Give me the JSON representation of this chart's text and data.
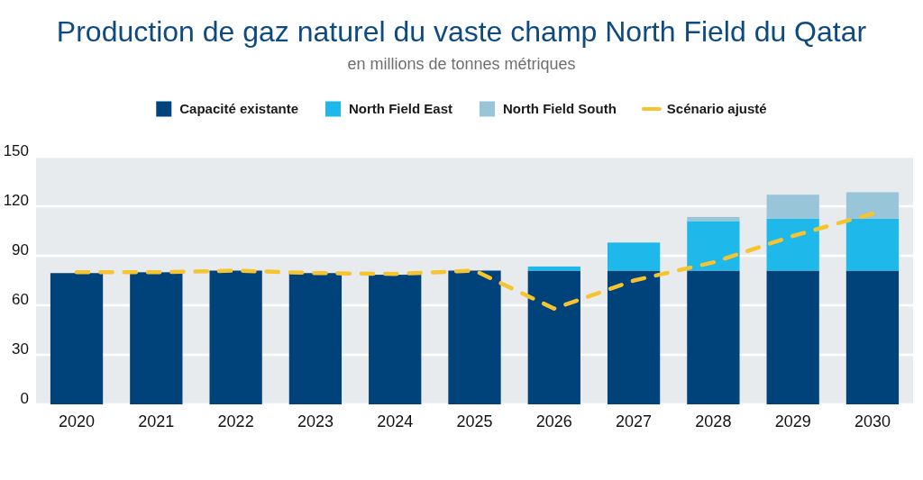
{
  "chart_data": {
    "type": "bar",
    "title": "Production de gaz naturel du vaste champ North Field du Qatar",
    "subtitle": "en millions de tonnes métriques",
    "categories": [
      "2020",
      "2021",
      "2022",
      "2023",
      "2024",
      "2025",
      "2026",
      "2027",
      "2028",
      "2029",
      "2030"
    ],
    "stacked": true,
    "series": [
      {
        "name": "Capacité existante",
        "color": "#00427a",
        "values": [
          79.5,
          80,
          81,
          79.5,
          78.5,
          81,
          81,
          81,
          81,
          81,
          81
        ]
      },
      {
        "name": "North Field East",
        "color": "#1fb8ea",
        "values": [
          null,
          null,
          null,
          null,
          null,
          null,
          2.5,
          17,
          30,
          31.5,
          31.5
        ]
      },
      {
        "name": "North Field South",
        "color": "#98c6d8",
        "values": [
          null,
          null,
          null,
          null,
          null,
          null,
          null,
          null,
          2.5,
          14.5,
          16
        ]
      },
      {
        "name": "Scénario ajusté",
        "type": "line",
        "color": "#f6c431",
        "line_style": "dashed",
        "values": [
          80,
          80,
          81,
          79.5,
          79,
          81,
          58,
          75,
          86,
          102,
          115.5
        ]
      }
    ],
    "ylim": [
      0,
      150
    ],
    "yticks": [
      0,
      30,
      60,
      90,
      120,
      150
    ],
    "grid": "y",
    "legend": "top"
  }
}
